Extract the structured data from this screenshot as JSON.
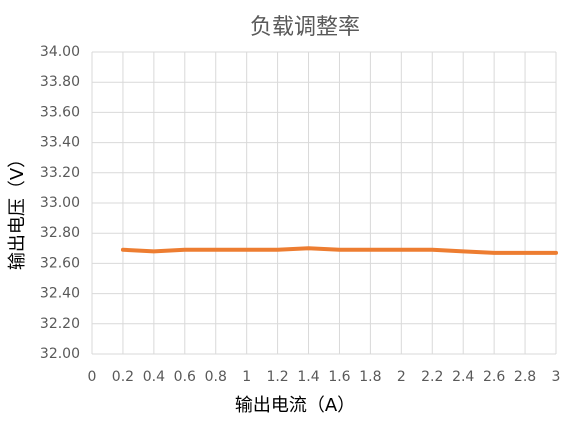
{
  "chart_data": {
    "type": "line",
    "title": "负载调整率",
    "x_label": "输出电流（A）",
    "y_label": "输出电压（V）",
    "x": [
      0.2,
      0.4,
      0.6,
      0.8,
      1,
      1.2,
      1.4,
      1.6,
      1.8,
      2,
      2.2,
      2.4,
      2.6,
      2.8,
      3
    ],
    "series": [
      {
        "name": "输出电压",
        "color": "#ed7d31",
        "values": [
          32.69,
          32.68,
          32.69,
          32.69,
          32.69,
          32.69,
          32.7,
          32.69,
          32.69,
          32.69,
          32.69,
          32.68,
          32.67,
          32.67,
          32.67
        ]
      }
    ],
    "xlim": [
      0,
      3
    ],
    "xticks": [
      0,
      0.2,
      0.4,
      0.6,
      0.8,
      1,
      1.2,
      1.4,
      1.6,
      1.8,
      2,
      2.2,
      2.4,
      2.6,
      2.8,
      3
    ],
    "ylim": [
      32,
      34
    ],
    "yticks": [
      {
        "value": 32,
        "label": "32.00"
      },
      {
        "value": 32.2,
        "label": "32.20"
      },
      {
        "value": 32.4,
        "label": "32.40"
      },
      {
        "value": 32.6,
        "label": "32.60"
      },
      {
        "value": 32.8,
        "label": "32.80"
      },
      {
        "value": 33,
        "label": "33.00"
      },
      {
        "value": 33.2,
        "label": "33.20"
      },
      {
        "value": 33.4,
        "label": "33.40"
      },
      {
        "value": 33.6,
        "label": "33.60"
      },
      {
        "value": 33.8,
        "label": "33.80"
      },
      {
        "value": 34,
        "label": "34.00"
      }
    ],
    "grid": true
  }
}
